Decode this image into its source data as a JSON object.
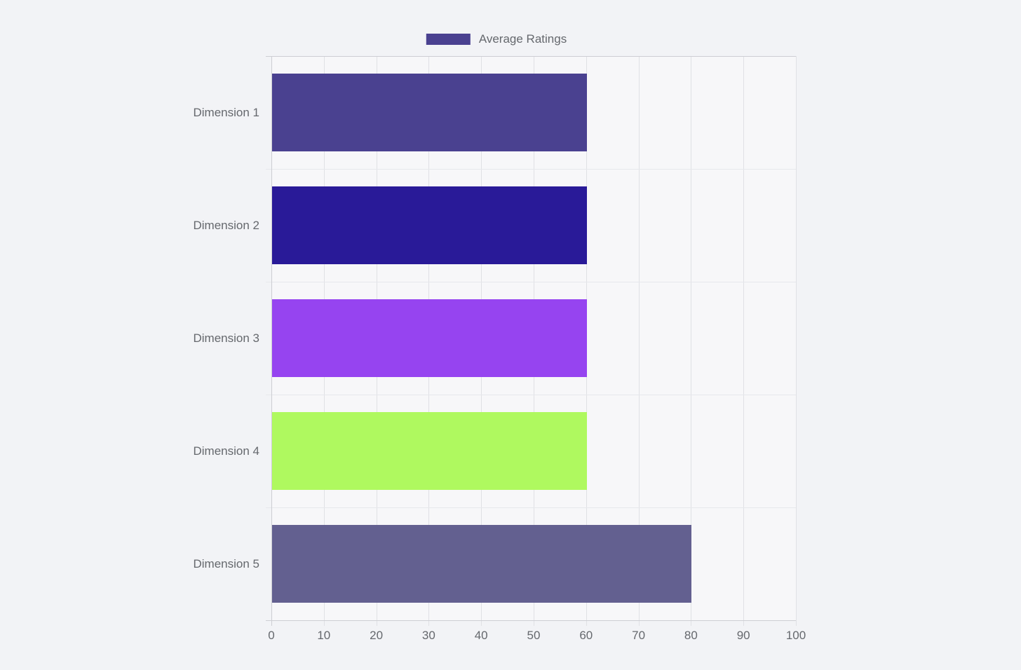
{
  "page": {
    "background_color": "#f2f3f6",
    "plot_background_color": "#f7f7f9"
  },
  "legend": {
    "label": "Average Ratings",
    "swatch_color": "#4a4190"
  },
  "chart_data": {
    "type": "bar",
    "orientation": "horizontal",
    "title": "",
    "categories": [
      "Dimension 1",
      "Dimension 2",
      "Dimension 3",
      "Dimension 4",
      "Dimension 5"
    ],
    "series": [
      {
        "name": "Average Ratings",
        "values": [
          60,
          60,
          60,
          60,
          80
        ]
      }
    ],
    "bar_colors": [
      "#4a4190",
      "#291a98",
      "#9644f0",
      "#aff95f",
      "#636090"
    ],
    "xlim": [
      0,
      100
    ],
    "x_ticks": [
      0,
      10,
      20,
      30,
      40,
      50,
      60,
      70,
      80,
      90,
      100
    ],
    "xlabel": "",
    "ylabel": "",
    "grid": true,
    "legend_position": "top",
    "grid_color": "#e0e1e5",
    "axis_color": "#cdced3",
    "tick_label_color": "#65686d"
  }
}
